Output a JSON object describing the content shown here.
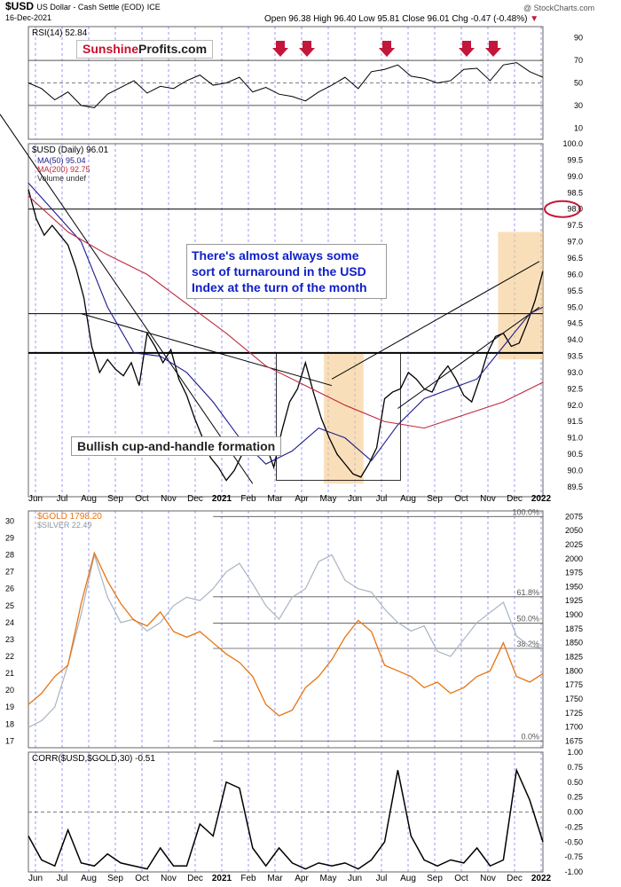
{
  "header": {
    "symbol": "$USD",
    "description": "US Dollar - Cash Settle (EOD)",
    "exchange": "ICE",
    "date": "16-Dec-2021",
    "open_label": "Open",
    "open": "96.38",
    "high_label": "High",
    "high": "96.40",
    "low_label": "Low",
    "low": "95.81",
    "close_label": "Close",
    "close": "96.01",
    "chg_label": "Chg",
    "chg": "-0.47 (-0.48%)",
    "chg_marker": "▼",
    "credit": "@ StockCharts.com"
  },
  "watermark": {
    "part1": "Sunshine",
    "part2": "Profits.com"
  },
  "annotations": {
    "turnaround_note": "There's almost always some sort of turnaround in the USD Index at the turn of the month",
    "pattern_note": "Bullish cup-and-handle formation"
  },
  "colors": {
    "usd": "#000000",
    "ma50": "#1c1c8c",
    "ma200": "#c0283c",
    "gold": "#e8730f",
    "silver": "#a9b4bf",
    "arrow": "#c4163a",
    "zone": "#f5c98a",
    "month_line": "#4a4aff"
  },
  "chart_data": [
    {
      "id": "rsi",
      "type": "line",
      "title": "RSI(14) 52.84",
      "y_ticks": [
        "90",
        "70",
        "50",
        "30",
        "10"
      ],
      "ylim": [
        0,
        100
      ],
      "reference_levels": [
        70,
        50,
        30
      ],
      "series": [
        {
          "name": "RSI(14)",
          "x": [
            0,
            10,
            20,
            30,
            40,
            50,
            60,
            70,
            80,
            90,
            100,
            110,
            120,
            130,
            140,
            150,
            160,
            170,
            180,
            190,
            200,
            210,
            220,
            230,
            240,
            250,
            260,
            270,
            280,
            290,
            300,
            310,
            320,
            330,
            340,
            350,
            360,
            370,
            380,
            390
          ],
          "values": [
            50,
            45,
            35,
            42,
            30,
            28,
            40,
            46,
            52,
            41,
            47,
            45,
            52,
            57,
            48,
            50,
            55,
            42,
            46,
            40,
            38,
            34,
            42,
            48,
            55,
            45,
            60,
            62,
            66,
            56,
            54,
            50,
            52,
            62,
            63,
            52,
            66,
            68,
            60,
            55
          ]
        }
      ],
      "arrow_x_dates": [
        "Mar",
        "Apr",
        "Jul",
        "Jul",
        "Oct",
        "Nov"
      ]
    },
    {
      "id": "usd",
      "type": "line",
      "title": "$USD (Daily) 96.01",
      "legend": [
        "MA(50) 95.04",
        "MA(200) 92.75",
        "Volume undef"
      ],
      "y_ticks": [
        "100.0",
        "99.5",
        "99.0",
        "98.5",
        "98.0",
        "97.5",
        "97.0",
        "96.5",
        "96.0",
        "95.5",
        "95.0",
        "94.5",
        "94.0",
        "93.5",
        "93.0",
        "92.5",
        "92.0",
        "91.5",
        "91.0",
        "90.5",
        "90.0",
        "89.5"
      ],
      "ylim": [
        89.2,
        100.0
      ],
      "horizontal_levels": [
        98.0,
        94.8,
        93.6
      ],
      "series": [
        {
          "name": "$USD",
          "x": [
            0,
            6,
            12,
            18,
            24,
            30,
            36,
            42,
            48,
            54,
            60,
            66,
            72,
            78,
            84,
            90,
            96,
            102,
            108,
            114,
            120,
            126,
            132,
            138,
            144,
            150,
            156,
            162,
            168,
            174,
            180,
            186,
            192,
            198,
            204,
            210,
            216,
            222,
            228,
            234,
            240,
            246,
            252,
            258,
            264,
            270,
            276,
            282,
            288,
            294,
            300,
            306,
            312,
            318,
            324,
            330,
            336,
            342,
            348,
            354,
            360,
            366,
            372,
            378,
            384,
            390
          ],
          "values": [
            98.6,
            97.7,
            97.2,
            97.5,
            97.2,
            96.9,
            96.2,
            95.3,
            93.8,
            93.0,
            93.4,
            93.1,
            92.9,
            93.3,
            92.6,
            94.2,
            93.8,
            93.3,
            93.7,
            92.8,
            92.3,
            91.6,
            91.0,
            90.4,
            90.1,
            89.7,
            90.0,
            90.5,
            91.0,
            90.5,
            90.8,
            90.1,
            91.2,
            92.1,
            92.5,
            93.3,
            92.4,
            91.6,
            91.0,
            90.5,
            90.2,
            89.9,
            89.8,
            90.2,
            90.7,
            92.2,
            92.4,
            92.5,
            93.0,
            92.8,
            92.5,
            92.4,
            92.9,
            93.2,
            92.8,
            92.3,
            92.1,
            92.8,
            93.6,
            94.1,
            94.2,
            93.8,
            93.9,
            94.5,
            95.2,
            96.1
          ]
        },
        {
          "name": "MA(50)",
          "x": [
            0,
            20,
            40,
            60,
            80,
            100,
            120,
            140,
            160,
            180,
            200,
            220,
            240,
            260,
            280,
            300,
            320,
            340,
            360,
            380,
            390
          ],
          "values": [
            98.8,
            97.9,
            97.0,
            95.0,
            93.6,
            93.5,
            93.0,
            92.1,
            91.0,
            90.2,
            90.6,
            91.3,
            91.0,
            90.3,
            91.4,
            92.2,
            92.5,
            92.8,
            93.8,
            94.8,
            95.0
          ]
        },
        {
          "name": "MA(200)",
          "x": [
            0,
            30,
            60,
            90,
            120,
            150,
            180,
            210,
            240,
            270,
            300,
            330,
            360,
            390
          ],
          "values": [
            98.4,
            97.3,
            96.6,
            96.0,
            95.1,
            94.2,
            93.2,
            92.6,
            92.0,
            91.5,
            91.3,
            91.7,
            92.1,
            92.7
          ]
        }
      ]
    },
    {
      "id": "gold_silver",
      "type": "line",
      "title": "$GOLD 1798.20",
      "legend": [
        "$GOLD 1798.20",
        "$SILVER 22.49"
      ],
      "y_ticks_left": [
        "30",
        "29",
        "28",
        "27",
        "26",
        "25",
        "24",
        "23",
        "22",
        "21",
        "20",
        "19",
        "18",
        "17"
      ],
      "ylim_left": [
        16.6,
        30.6
      ],
      "y_ticks_right": [
        "2075",
        "2050",
        "2025",
        "2000",
        "1975",
        "1950",
        "1925",
        "1900",
        "1875",
        "1850",
        "1825",
        "1800",
        "1775",
        "1750",
        "1725",
        "1700",
        "1675"
      ],
      "ylim_right": [
        1663,
        2085
      ],
      "fib_levels": [
        "100.0%",
        "61.8%",
        "50.0%",
        "38.2%",
        "0.0%"
      ],
      "series": [
        {
          "name": "$GOLD",
          "axis": "right",
          "x": [
            0,
            10,
            20,
            30,
            40,
            50,
            60,
            70,
            80,
            90,
            100,
            110,
            120,
            130,
            140,
            150,
            160,
            170,
            180,
            190,
            200,
            210,
            220,
            230,
            240,
            250,
            260,
            270,
            280,
            290,
            300,
            310,
            320,
            330,
            340,
            350,
            360,
            370,
            380,
            390
          ],
          "values": [
            1740,
            1760,
            1790,
            1810,
            1920,
            2010,
            1960,
            1920,
            1890,
            1880,
            1905,
            1870,
            1860,
            1870,
            1850,
            1830,
            1815,
            1790,
            1740,
            1720,
            1730,
            1770,
            1790,
            1820,
            1860,
            1890,
            1870,
            1810,
            1800,
            1790,
            1770,
            1780,
            1760,
            1770,
            1790,
            1800,
            1850,
            1790,
            1780,
            1795
          ]
        },
        {
          "name": "$SILVER",
          "axis": "left",
          "x": [
            0,
            10,
            20,
            30,
            40,
            50,
            60,
            70,
            80,
            90,
            100,
            110,
            120,
            130,
            140,
            150,
            160,
            170,
            180,
            190,
            200,
            210,
            220,
            230,
            240,
            250,
            260,
            270,
            280,
            290,
            300,
            310,
            320,
            330,
            340,
            350,
            360,
            370,
            380,
            390
          ],
          "values": [
            17.8,
            18.2,
            19.0,
            21.5,
            24.5,
            28.0,
            25.5,
            24.0,
            24.2,
            23.5,
            24.0,
            25.0,
            25.5,
            25.3,
            26.0,
            27.0,
            27.5,
            26.3,
            25.0,
            24.2,
            25.5,
            26.0,
            27.6,
            28.0,
            26.5,
            26.0,
            25.8,
            24.8,
            24.0,
            23.5,
            23.8,
            22.3,
            22.0,
            23.0,
            24.0,
            24.6,
            25.2,
            23.2,
            22.6,
            22.5
          ]
        }
      ]
    },
    {
      "id": "corr",
      "type": "line",
      "title": "CORR($USD,$GOLD,30) -0.51",
      "y_ticks": [
        "1.00",
        "0.75",
        "0.50",
        "0.25",
        "0.00",
        "-0.25",
        "-0.50",
        "-0.75",
        "-1.00"
      ],
      "ylim": [
        -1.0,
        1.0
      ],
      "series": [
        {
          "name": "CORR",
          "x": [
            0,
            10,
            20,
            30,
            40,
            50,
            60,
            70,
            80,
            90,
            100,
            110,
            120,
            130,
            140,
            150,
            160,
            170,
            180,
            190,
            200,
            210,
            220,
            230,
            240,
            250,
            260,
            270,
            280,
            290,
            300,
            310,
            320,
            330,
            340,
            350,
            360,
            370,
            380,
            390
          ],
          "values": [
            -0.4,
            -0.8,
            -0.9,
            -0.3,
            -0.85,
            -0.9,
            -0.7,
            -0.85,
            -0.9,
            -0.95,
            -0.6,
            -0.9,
            -0.9,
            -0.2,
            -0.4,
            0.5,
            0.4,
            -0.6,
            -0.9,
            -0.6,
            -0.85,
            -0.95,
            -0.85,
            -0.9,
            -0.85,
            -0.95,
            -0.8,
            -0.5,
            0.7,
            -0.4,
            -0.8,
            -0.9,
            -0.8,
            -0.85,
            -0.6,
            -0.9,
            -0.8,
            0.7,
            0.2,
            -0.5
          ]
        }
      ]
    }
  ],
  "x_axis": {
    "labels": [
      "Jun",
      "Jul",
      "Aug",
      "Sep",
      "Oct",
      "Nov",
      "Dec",
      "2021",
      "Feb",
      "Mar",
      "Apr",
      "May",
      "Jun",
      "Jul",
      "Aug",
      "Sep",
      "Oct",
      "Nov",
      "Dec",
      "2022"
    ],
    "bold_labels": [
      "2021",
      "2022"
    ]
  }
}
